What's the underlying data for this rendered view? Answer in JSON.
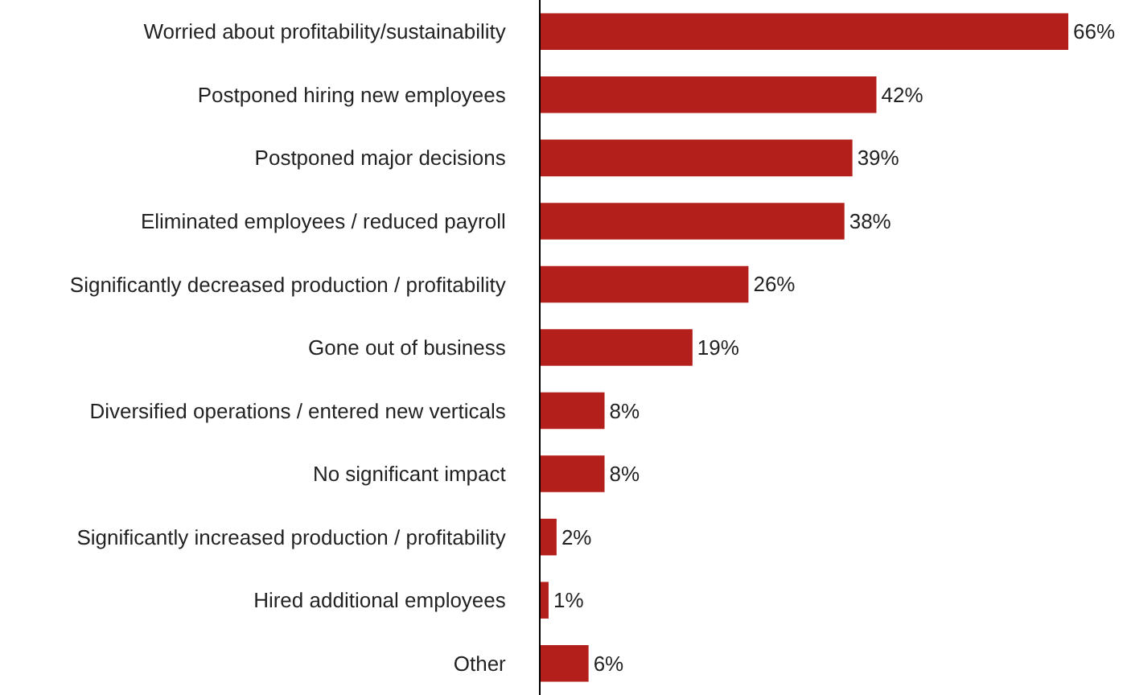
{
  "chart_data": {
    "type": "bar",
    "orientation": "horizontal",
    "categories": [
      "Worried about profitability/sustainability",
      "Postponed hiring new employees",
      "Postponed major decisions",
      "Eliminated employees / reduced payroll",
      "Significantly decreased production / profitability",
      "Gone out of business",
      "Diversified operations / entered new verticals",
      "No significant impact",
      "Significantly increased production / profitability",
      "Hired additional employees",
      "Other"
    ],
    "values": [
      66,
      42,
      39,
      38,
      26,
      19,
      8,
      8,
      2,
      1,
      6
    ],
    "value_labels": [
      "66%",
      "42%",
      "39%",
      "38%",
      "26%",
      "19%",
      "8%",
      "8%",
      "2%",
      "1%",
      "6%"
    ],
    "color": "#b31f1b",
    "grid": false,
    "legend": false
  }
}
